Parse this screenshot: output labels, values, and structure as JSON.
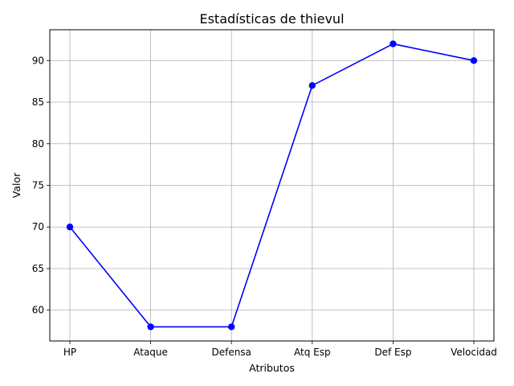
{
  "chart_data": {
    "type": "line",
    "title": "Estadísticas de thievul",
    "xlabel": "Atributos",
    "ylabel": "Valor",
    "categories": [
      "HP",
      "Ataque",
      "Defensa",
      "Atq Esp",
      "Def Esp",
      "Velocidad"
    ],
    "series": [
      {
        "values": [
          70,
          58,
          58,
          87,
          92,
          90
        ],
        "color": "#0000ff",
        "marker": "circle"
      }
    ],
    "ylim": [
      56.3,
      93.7
    ],
    "yticks": [
      60,
      65,
      70,
      75,
      80,
      85,
      90
    ],
    "grid": true
  }
}
